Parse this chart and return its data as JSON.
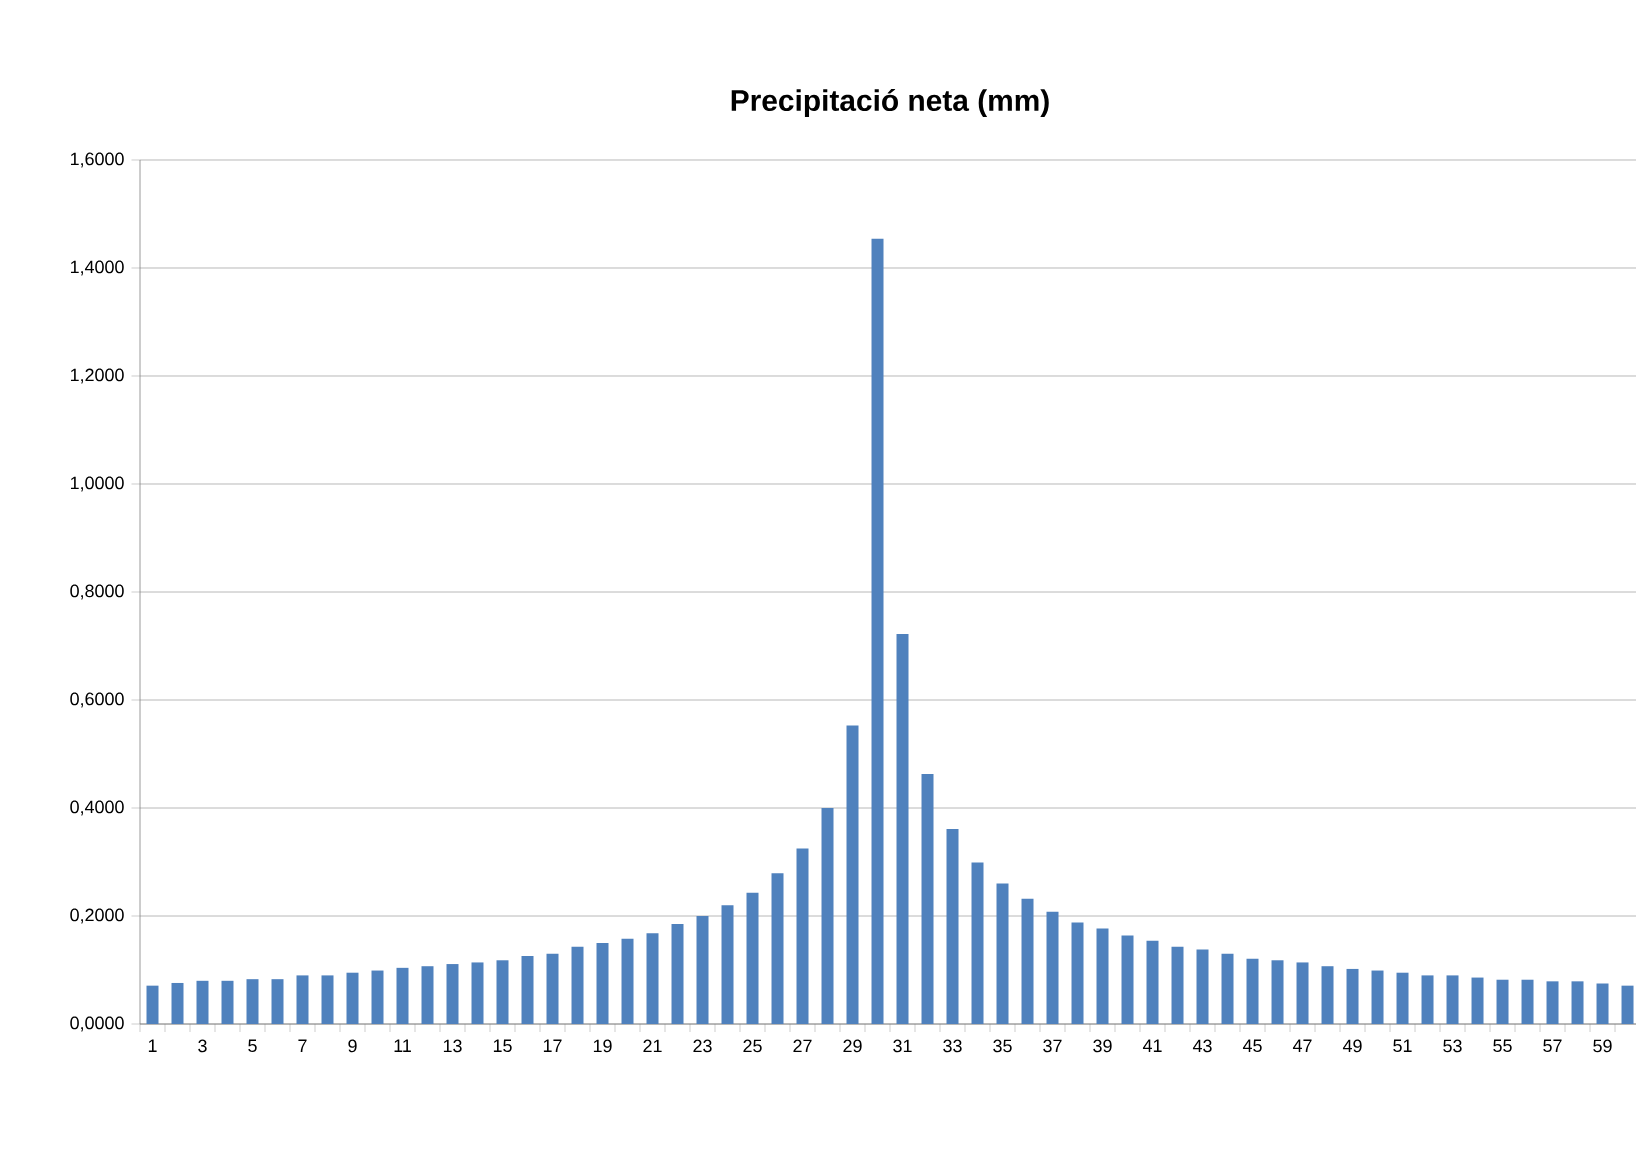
{
  "chart_data": {
    "type": "bar",
    "title": "Precipitació neta (mm)",
    "categories": [
      "1",
      null,
      "3",
      null,
      "5",
      null,
      "7",
      null,
      "9",
      null,
      "11",
      null,
      "13",
      null,
      "15",
      null,
      "17",
      null,
      "19",
      null,
      "21",
      null,
      "23",
      null,
      "25",
      null,
      "27",
      null,
      "29",
      null,
      "31",
      null,
      "33",
      null,
      "35",
      null,
      "37",
      null,
      "39",
      null,
      "41",
      null,
      "43",
      null,
      "45",
      null,
      "47",
      null,
      "49",
      null,
      "51",
      null,
      "53",
      null,
      "55",
      null,
      "57",
      null,
      "59",
      null
    ],
    "values": [
      0.071,
      0.076,
      0.08,
      0.08,
      0.083,
      0.083,
      0.09,
      0.09,
      0.095,
      0.099,
      0.104,
      0.107,
      0.111,
      0.114,
      0.118,
      0.126,
      0.13,
      0.143,
      0.15,
      0.158,
      0.168,
      0.185,
      0.2,
      0.22,
      0.243,
      0.279,
      0.325,
      0.4,
      0.553,
      1.454,
      0.722,
      0.463,
      0.361,
      0.299,
      0.26,
      0.232,
      0.208,
      0.188,
      0.177,
      0.164,
      0.154,
      0.143,
      0.138,
      0.13,
      0.121,
      0.118,
      0.114,
      0.107,
      0.102,
      0.099,
      0.095,
      0.09,
      0.09,
      0.086,
      0.082,
      0.082,
      0.079,
      0.079,
      0.075,
      0.071
    ],
    "color": "#4f81bd",
    "ylim": [
      0,
      1.6
    ],
    "yticks": [
      {
        "value": 0,
        "label": "0,0000"
      },
      {
        "value": 0.2,
        "label": "0,2000"
      },
      {
        "value": 0.4,
        "label": "0,4000"
      },
      {
        "value": 0.6,
        "label": "0,6000"
      },
      {
        "value": 0.8,
        "label": "0,8000"
      },
      {
        "value": 1.0,
        "label": "1,0000"
      },
      {
        "value": 1.2,
        "label": "1,2000"
      },
      {
        "value": 1.4,
        "label": "1,4000"
      },
      {
        "value": 1.6,
        "label": "1,6000"
      }
    ],
    "grid": "y"
  }
}
